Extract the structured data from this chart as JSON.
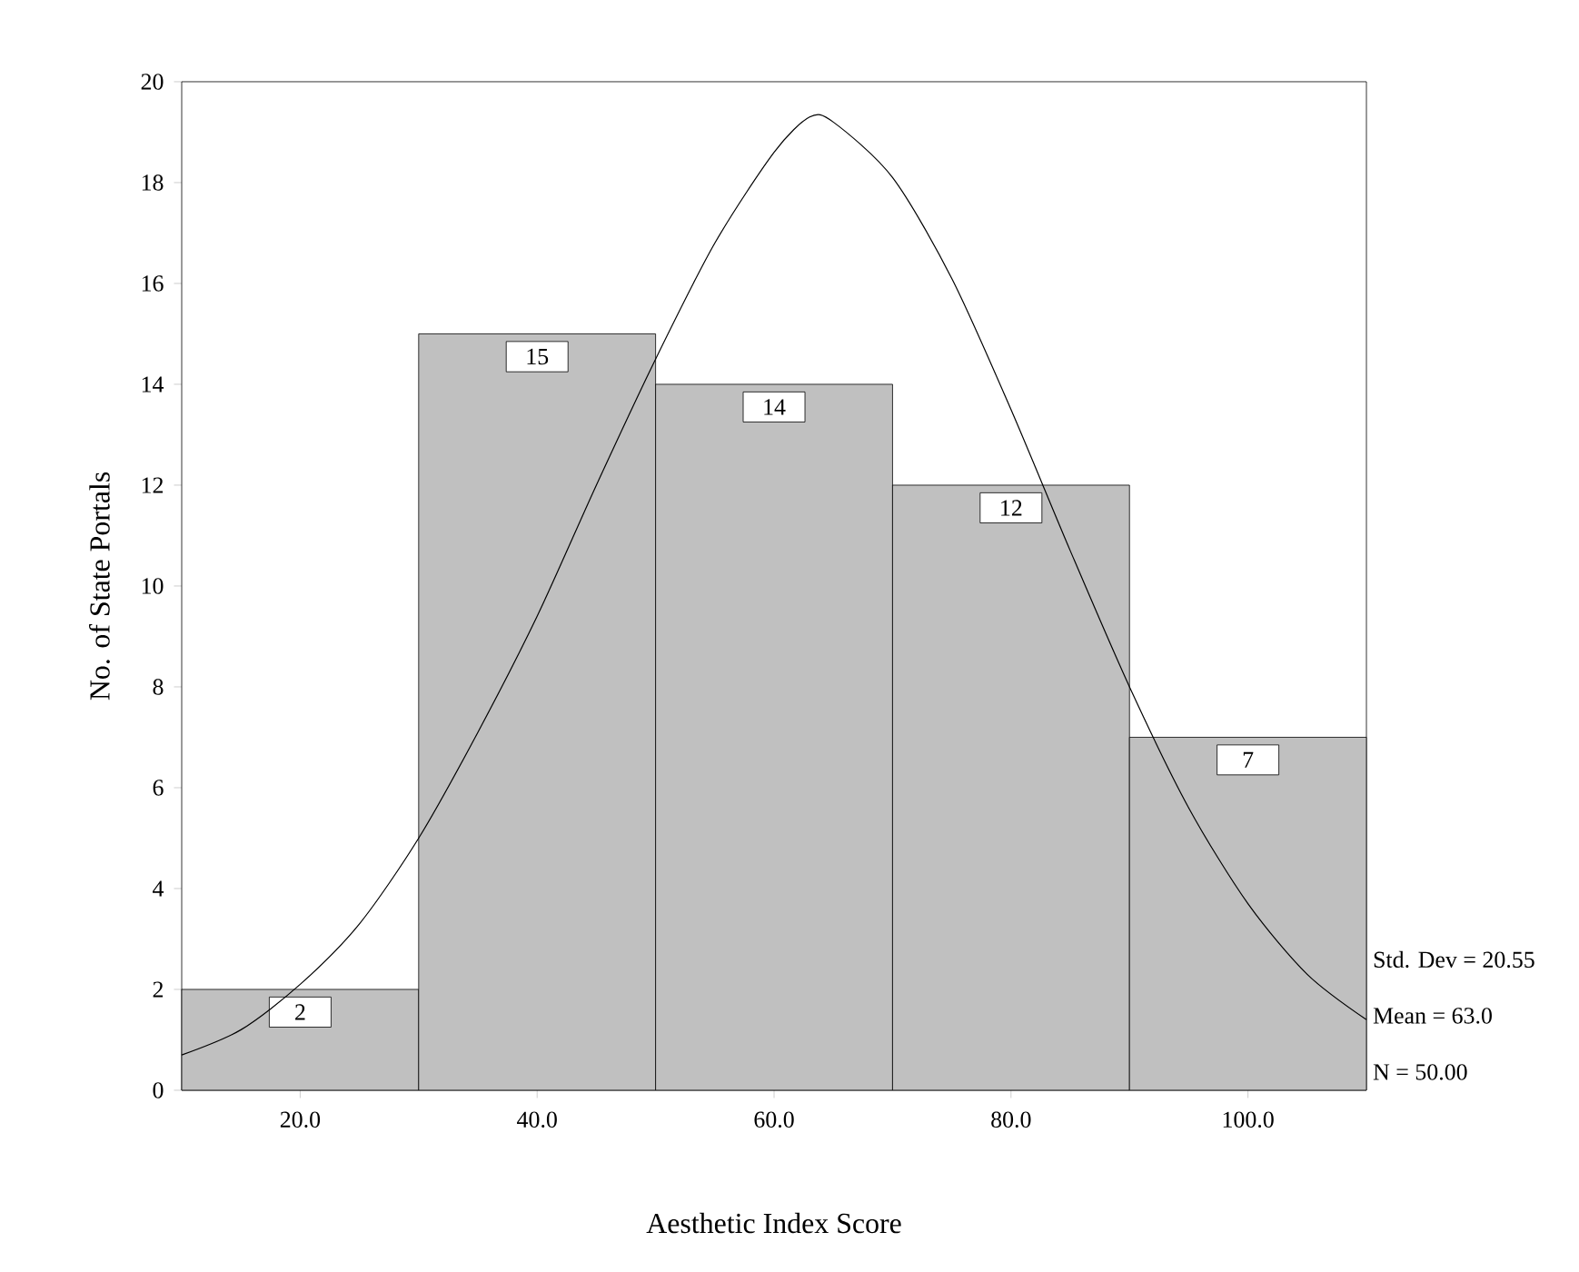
{
  "chart_data": {
    "type": "histogram",
    "xlabel": "Aesthetic Index Score",
    "ylabel": "No. of State Portals",
    "bins": [
      10,
      30,
      50,
      70,
      90,
      110
    ],
    "values": [
      2,
      15,
      14,
      12,
      7
    ],
    "color": "#c0c0c0",
    "value_labels": [
      "2",
      "15",
      "14",
      "12",
      "7"
    ],
    "series": [
      {
        "type": "line",
        "color": "#000000",
        "x": [
          10,
          15,
          20,
          25,
          30,
          35,
          40,
          45,
          50,
          55,
          60,
          63,
          65,
          70,
          75,
          80,
          85,
          90,
          95,
          100,
          105,
          110
        ],
        "values": [
          0.7,
          1.2,
          2.1,
          3.3,
          5.0,
          7.1,
          9.4,
          12.0,
          14.5,
          16.8,
          18.6,
          19.3,
          19.2,
          18.1,
          16.1,
          13.5,
          10.7,
          8.0,
          5.6,
          3.7,
          2.3,
          1.4
        ]
      }
    ],
    "xlim": [
      10,
      110
    ],
    "ylim": [
      0,
      20
    ],
    "xticks": [
      {
        "value": 20,
        "label": "20.0"
      },
      {
        "value": 40,
        "label": "40.0"
      },
      {
        "value": 60,
        "label": "60.0"
      },
      {
        "value": 80,
        "label": "80.0"
      },
      {
        "value": 100,
        "label": "100.0"
      }
    ],
    "yticks": [
      0,
      2,
      4,
      6,
      8,
      10,
      12,
      14,
      16,
      18,
      20
    ],
    "grid": false,
    "annotations": [
      "Std. Dev = 20.55",
      "Mean = 63.0",
      "N = 50.00"
    ]
  }
}
